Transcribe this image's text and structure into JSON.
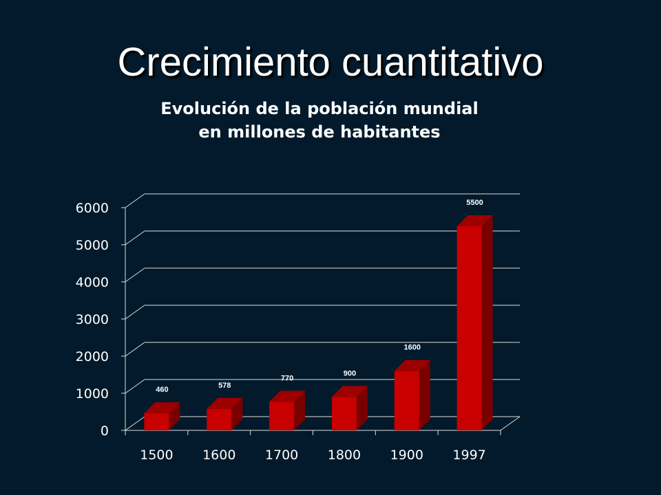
{
  "slide": {
    "title": "Crecimiento cuantitativo"
  },
  "chart_data": {
    "type": "bar",
    "title_line1": "Evolución de la población mundial",
    "title_line2": "en millones de habitantes",
    "categories": [
      "1500",
      "1600",
      "1700",
      "1800",
      "1900",
      "1997"
    ],
    "values": [
      460,
      578,
      770,
      900,
      1600,
      5500
    ],
    "data_labels": [
      "460",
      "578",
      "770",
      "900",
      "1600",
      "5500"
    ],
    "ylim": [
      0,
      6000
    ],
    "yticks": [
      0,
      1000,
      2000,
      3000,
      4000,
      5000,
      6000
    ],
    "grid": true,
    "style": "3d-column",
    "colors": {
      "bar_front": "#c80000",
      "bar_top": "#9e0000",
      "bar_side": "#7a0000",
      "grid": "#e0e0e0",
      "background": "#021a2b"
    }
  }
}
